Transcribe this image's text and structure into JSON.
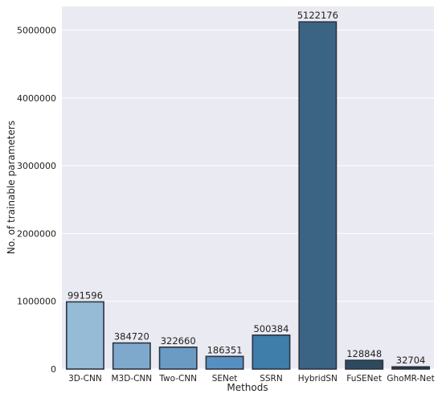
{
  "chart_data": {
    "type": "bar",
    "categories": [
      "3D-CNN",
      "M3D-CNN",
      "Two-CNN",
      "SENet",
      "SSRN",
      "HybridSN",
      "FuSENet",
      "GhoMR-Net"
    ],
    "values": [
      991596,
      384720,
      322660,
      186351,
      500384,
      5122176,
      128848,
      32704
    ],
    "data_labels": [
      "991596",
      "384720",
      "322660",
      "186351",
      "500384",
      "5122176",
      "128848",
      "32704"
    ],
    "xlabel": "Methods",
    "ylabel": "No. of trainable parameters",
    "ylim": [
      0,
      5350000
    ],
    "yticks": [
      0,
      1000000,
      2000000,
      3000000,
      4000000,
      5000000
    ],
    "ytick_labels": [
      "0",
      "1000000",
      "2000000",
      "3000000",
      "4000000",
      "5000000"
    ],
    "grid": true,
    "colors": {
      "background": "#eaeaf2",
      "grid": "#ffffff",
      "edge": "#2b3440",
      "bars": [
        "#95bbd6",
        "#7fa9cc",
        "#6b9ac3",
        "#5690c2",
        "#3f7dab",
        "#3b6384",
        "#2f4a5f",
        "#24323f"
      ]
    }
  }
}
